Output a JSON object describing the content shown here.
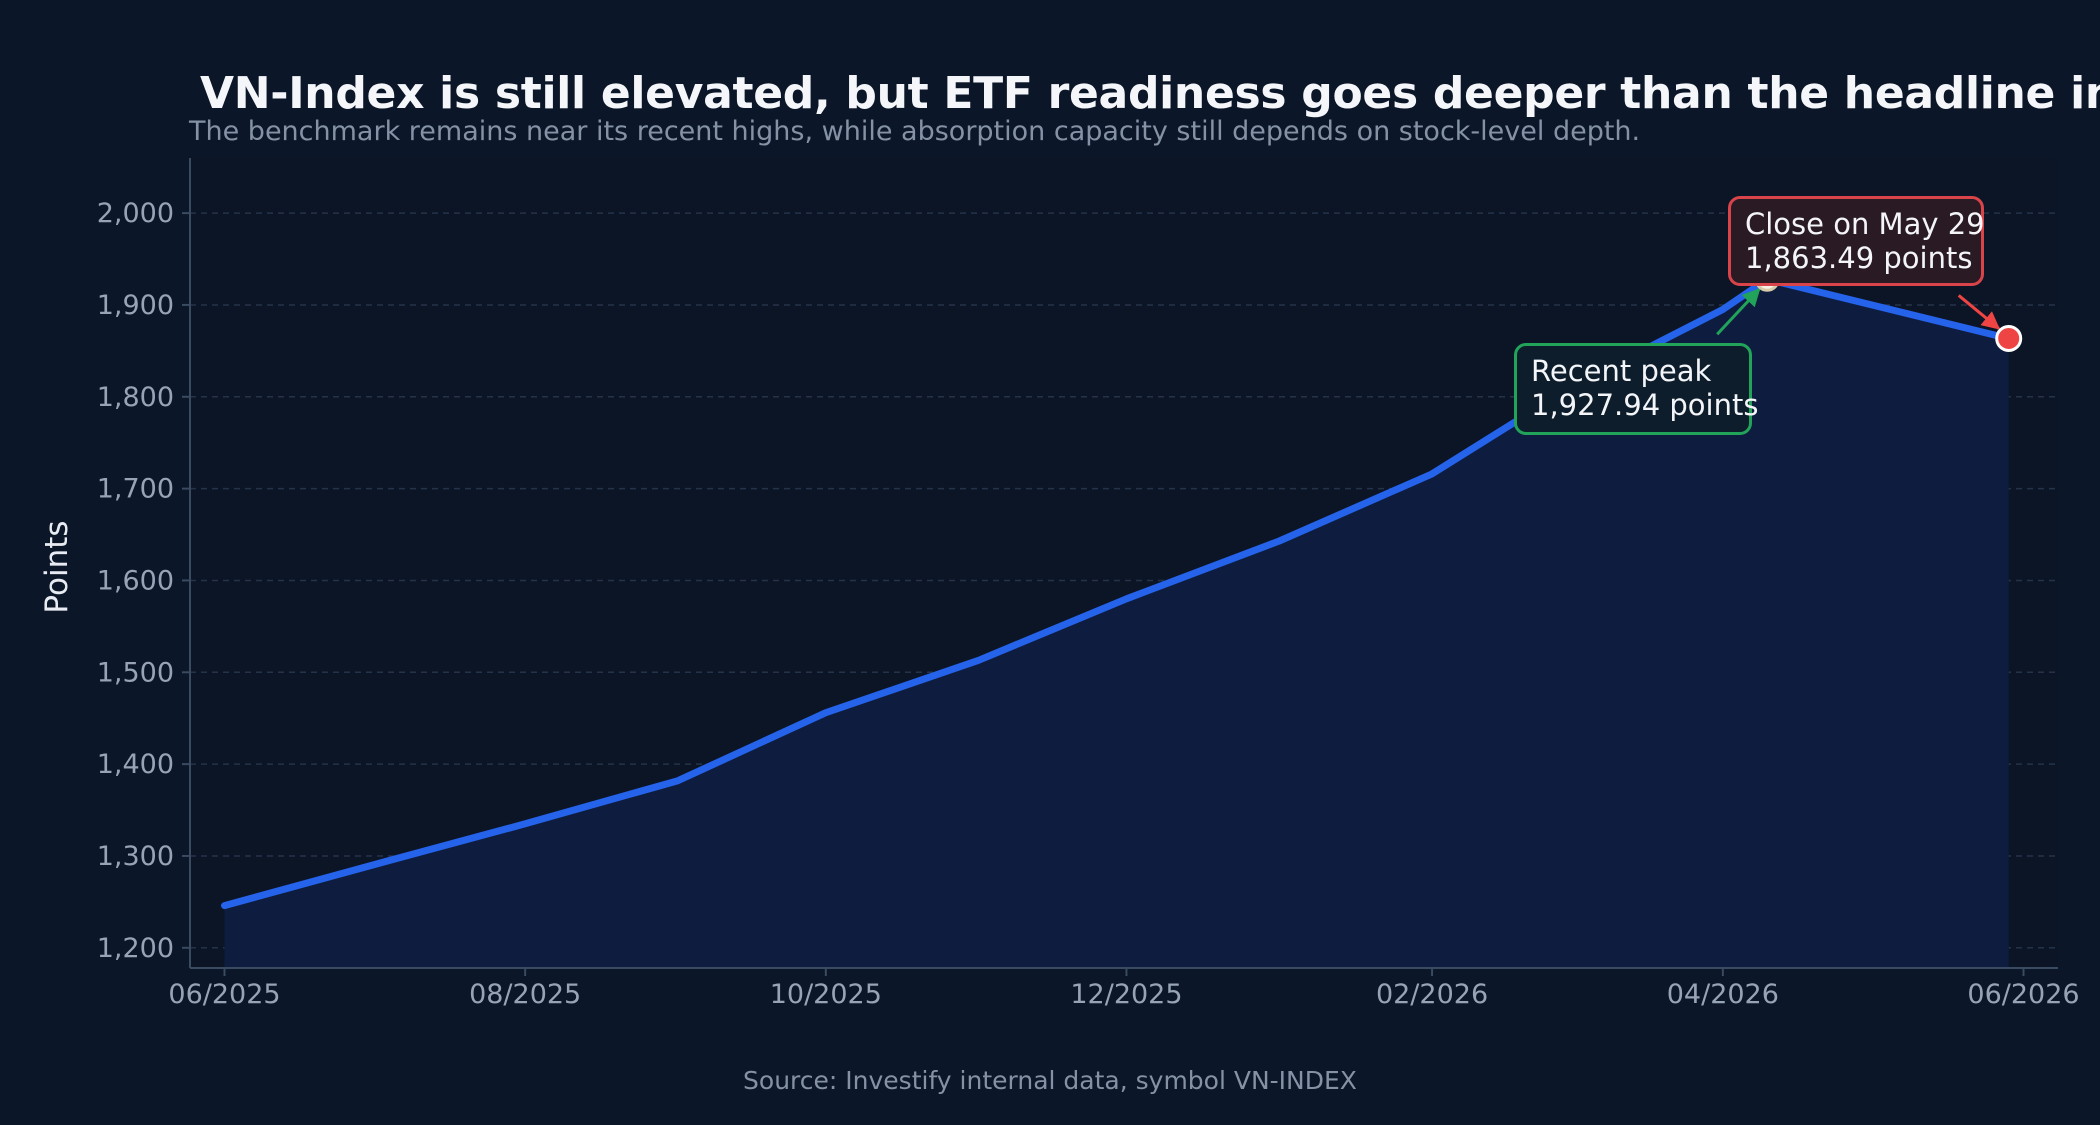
{
  "title": "VN-Index is still elevated, but ETF readiness goes deeper than the headline index",
  "subtitle": "The benchmark remains near its recent highs, while absorption capacity still depends on stock-level depth.",
  "source": "Source: Investify internal data, symbol VN-INDEX",
  "colors": {
    "background": "#0b1628",
    "line": "#2563eb",
    "area": "#0e1d3f",
    "peak_accent": "#22a35a",
    "close_accent": "#ef4444"
  },
  "chart_data": {
    "type": "area",
    "ylabel": "Points",
    "xlabel": "",
    "xlim": [
      "2025-05-25",
      "2026-06-08"
    ],
    "ylim": [
      1178,
      2060
    ],
    "x_ticks": [
      "2025-06-01",
      "2025-08-01",
      "2025-10-01",
      "2025-12-01",
      "2026-02-01",
      "2026-04-01",
      "2026-06-01"
    ],
    "x_tick_labels": [
      "06/2025",
      "08/2025",
      "10/2025",
      "12/2025",
      "02/2026",
      "04/2026",
      "06/2026"
    ],
    "y_ticks": [
      1200,
      1300,
      1400,
      1500,
      1600,
      1700,
      1800,
      1900,
      2000
    ],
    "y_tick_labels": [
      "1,200",
      "1,300",
      "1,400",
      "1,500",
      "1,600",
      "1,700",
      "1,800",
      "1,900",
      "2,000"
    ],
    "grid": true,
    "series": [
      {
        "x": [
          "2025-06-01",
          "2025-07-01",
          "2025-08-01",
          "2025-09-01",
          "2025-10-01",
          "2025-11-01",
          "2025-12-01",
          "2026-01-01",
          "2026-02-01",
          "2026-03-01",
          "2026-04-01",
          "2026-04-10",
          "2026-05-29"
        ],
        "values": [
          1246,
          1290,
          1335,
          1382,
          1456,
          1513,
          1580,
          1643,
          1716,
          1810,
          1895,
          1927.94,
          1863.49
        ]
      }
    ],
    "annotations": [
      {
        "label_line1": "Recent peak",
        "label_line2": "1,927.94 points",
        "x": "2026-04-10",
        "y": 1927.94
      },
      {
        "label_line1": "Close on May 29",
        "label_line2": "1,863.49 points",
        "x": "2026-05-29",
        "y": 1863.49
      }
    ]
  }
}
